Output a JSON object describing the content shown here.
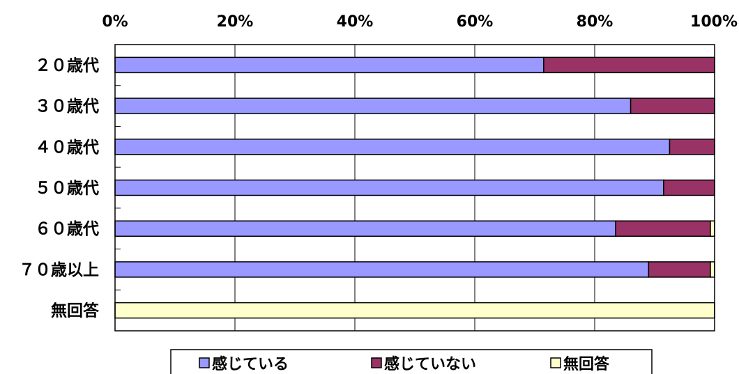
{
  "chart_data": {
    "type": "bar",
    "orientation": "horizontal",
    "stacked": "100%",
    "title": "",
    "xlabel": "",
    "ylabel": "",
    "xlim": [
      0,
      100
    ],
    "x_ticks": [
      "0%",
      "20%",
      "40%",
      "60%",
      "80%",
      "100%"
    ],
    "grid": true,
    "legend_position": "bottom",
    "categories": [
      "２０歳代",
      "３０歳代",
      "４０歳代",
      "５０歳代",
      "６０歳代",
      "７０歳以上",
      "無回答"
    ],
    "series": [
      {
        "name": "感じている",
        "color": "#9999ff",
        "values": [
          71.5,
          86.0,
          92.5,
          91.5,
          83.5,
          89.0,
          0
        ]
      },
      {
        "name": "感じていない",
        "color": "#993366",
        "values": [
          28.5,
          14.0,
          7.5,
          8.5,
          15.8,
          10.3,
          0
        ]
      },
      {
        "name": "無回答",
        "color": "#ffffcc",
        "values": [
          0,
          0,
          0,
          0,
          0.7,
          0.7,
          100
        ]
      }
    ]
  }
}
